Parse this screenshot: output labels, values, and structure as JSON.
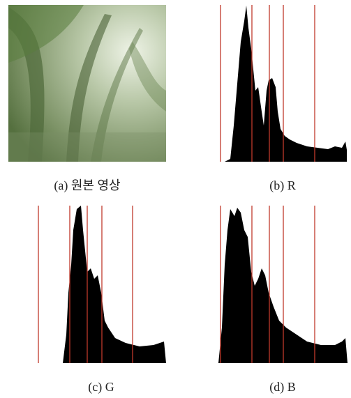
{
  "figure": {
    "captions": [
      "(a) 원본 영상",
      "(b) R",
      "(c) G",
      "(d) B"
    ]
  }
}
